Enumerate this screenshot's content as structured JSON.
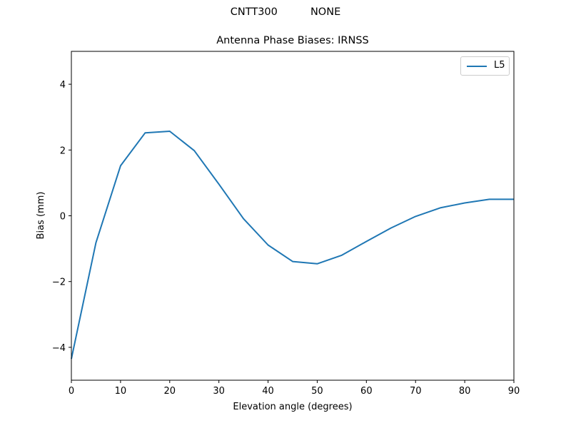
{
  "figure": {
    "suptitle": "CNTT300          NONE",
    "title": "Antenna Phase Biases: IRNSS"
  },
  "legend": {
    "entries": [
      {
        "label": "L5",
        "color": "#1f77b4"
      }
    ]
  },
  "axes": {
    "xlabel": "Elevation angle (degrees)",
    "ylabel": "Bias (mm)",
    "xticks": [
      "0",
      "10",
      "20",
      "30",
      "40",
      "50",
      "60",
      "70",
      "80",
      "90"
    ],
    "yticks": [
      "4",
      "2",
      "0",
      "−2",
      "−4"
    ]
  },
  "chart_data": {
    "type": "line",
    "title": "Antenna Phase Biases: IRNSS",
    "suptitle": "CNTT300          NONE",
    "xlabel": "Elevation angle (degrees)",
    "ylabel": "Bias (mm)",
    "xlim": [
      0,
      90
    ],
    "ylim": [
      -5,
      5
    ],
    "grid": false,
    "legend_position": "upper right",
    "x": [
      0,
      5,
      10,
      15,
      20,
      25,
      30,
      35,
      40,
      45,
      50,
      55,
      60,
      65,
      70,
      75,
      80,
      85,
      90
    ],
    "series": [
      {
        "name": "L5",
        "color": "#1f77b4",
        "values": [
          -4.35,
          -0.82,
          1.52,
          2.52,
          2.57,
          1.98,
          0.96,
          -0.09,
          -0.89,
          -1.39,
          -1.46,
          -1.2,
          -0.78,
          -0.37,
          -0.02,
          0.24,
          0.39,
          0.5,
          0.5
        ]
      }
    ]
  }
}
